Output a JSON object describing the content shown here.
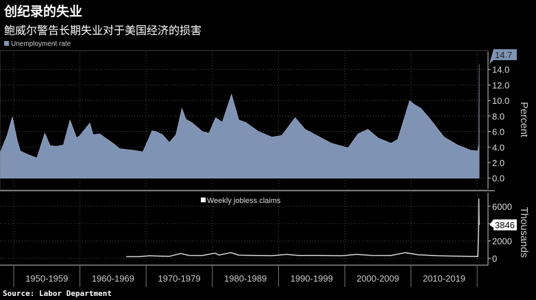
{
  "title": "创纪录的失业",
  "subtitle": "鲍威尔警告长期失业对于美国经济的损害",
  "source": "Source: Labor Department",
  "colors": {
    "area": "#7f93b4",
    "claims": "#d8d8d8",
    "background": "#000000",
    "grid": "#555555"
  },
  "chart_data": [
    {
      "type": "area",
      "legend": "Unemployment rate",
      "ylabel": "Percent",
      "ylim": [
        0,
        14.7
      ],
      "yticks": [
        "0.0",
        "2.0",
        "4.0",
        "6.0",
        "8.0",
        "10.0",
        "12.0",
        "14.0"
      ],
      "last_value_label": "14.7",
      "x": [
        1948.0,
        1949.0,
        1949.8,
        1950.5,
        1951.0,
        1952.0,
        1953.5,
        1954.7,
        1955.5,
        1956.5,
        1957.5,
        1958.5,
        1959.5,
        1960.0,
        1961.5,
        1962.0,
        1963.0,
        1964.0,
        1965.0,
        1966.0,
        1968.0,
        1969.5,
        1970.9,
        1971.5,
        1972.5,
        1973.5,
        1974.5,
        1975.4,
        1976.0,
        1977.0,
        1978.5,
        1979.5,
        1980.5,
        1981.5,
        1982.9,
        1984.0,
        1985.0,
        1987.0,
        1989.0,
        1990.5,
        1992.5,
        1994.0,
        1996.0,
        1998.0,
        2000.5,
        2002.0,
        2003.5,
        2005.0,
        2007.0,
        2008.0,
        2009.8,
        2010.5,
        2011.5,
        2013.0,
        2015.0,
        2017.0,
        2019.0,
        2020.1,
        2020.25,
        2020.3
      ],
      "values": [
        3.4,
        5.5,
        7.9,
        5.0,
        3.5,
        3.1,
        2.6,
        5.8,
        4.2,
        4.1,
        4.3,
        7.5,
        5.2,
        5.5,
        7.1,
        5.6,
        5.7,
        5.1,
        4.5,
        3.8,
        3.6,
        3.4,
        6.1,
        6.0,
        5.6,
        4.6,
        5.6,
        9.0,
        7.6,
        7.1,
        6.0,
        5.8,
        7.8,
        7.2,
        10.8,
        7.5,
        7.2,
        6.0,
        5.3,
        5.5,
        7.8,
        6.3,
        5.4,
        4.5,
        3.9,
        5.7,
        6.3,
        5.2,
        4.5,
        5.0,
        10.0,
        9.5,
        9.0,
        7.5,
        5.3,
        4.3,
        3.6,
        3.5,
        4.4,
        14.7
      ]
    },
    {
      "type": "line",
      "legend": "Weekly jobless claims",
      "ylabel": "Thousands",
      "ylim": [
        0,
        7000
      ],
      "yticks": [
        "0",
        "2000",
        "4000",
        "6000"
      ],
      "last_value_label": "3846",
      "x": [
        1967.0,
        1969.0,
        1970.5,
        1972.0,
        1973.5,
        1975.2,
        1976.5,
        1978.5,
        1980.4,
        1981.0,
        1982.8,
        1984.0,
        1987.0,
        1989.0,
        1991.2,
        1993.0,
        1996.0,
        1999.5,
        2001.8,
        2004.0,
        2007.0,
        2009.2,
        2011.0,
        2014.0,
        2019.0,
        2020.1,
        2020.22,
        2020.25,
        2020.27,
        2020.3
      ],
      "values": [
        200,
        200,
        300,
        260,
        230,
        550,
        340,
        320,
        600,
        380,
        650,
        360,
        320,
        310,
        450,
        330,
        340,
        290,
        450,
        340,
        320,
        650,
        410,
        300,
        220,
        210,
        3300,
        6867,
        5200,
        3846
      ]
    }
  ],
  "x_categories": [
    "1950-1959",
    "1960-1969",
    "1970-1979",
    "1980-1989",
    "1990-1999",
    "2000-2009",
    "2010-2019"
  ]
}
